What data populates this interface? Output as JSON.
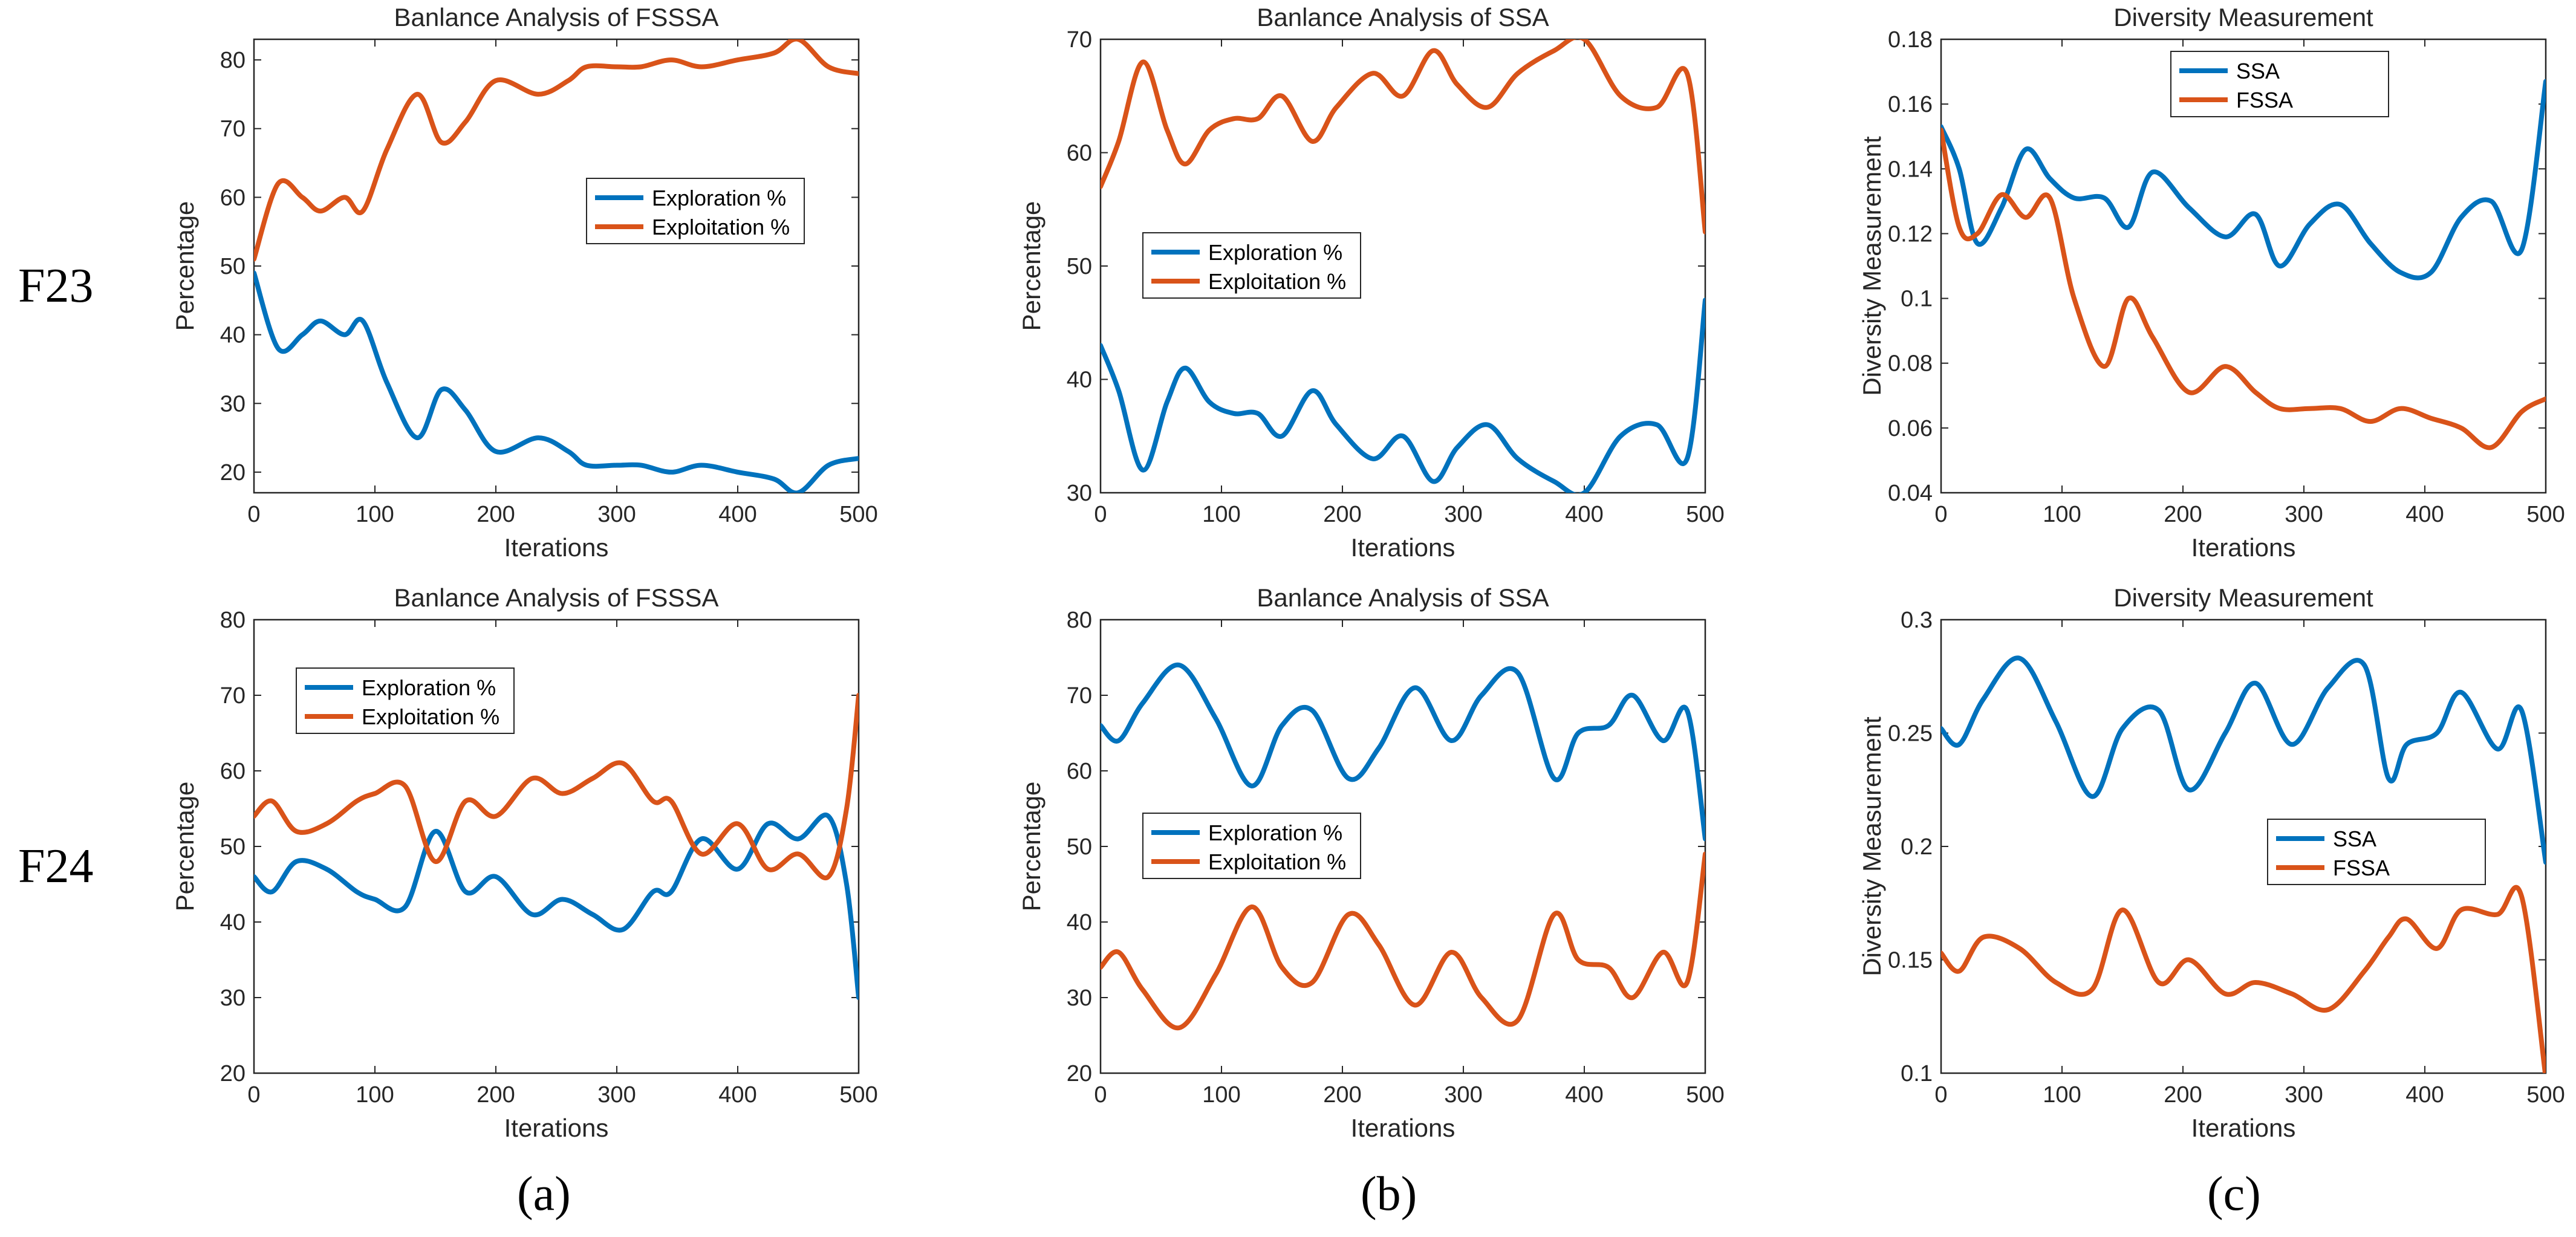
{
  "figure": {
    "row_labels": [
      "F23",
      "F24"
    ],
    "panel_labels": [
      "(a)",
      "(b)",
      "(c)"
    ]
  },
  "colors": {
    "blue": "#0072BD",
    "orange": "#D95319"
  },
  "chart_data": [
    {
      "type": "line",
      "title": "Banlance Analysis of FSSSA",
      "xlabel": "Iterations",
      "ylabel": "Percentage",
      "xlim": [
        0,
        500
      ],
      "ylim": [
        17,
        83
      ],
      "xticks": [
        0,
        100,
        200,
        300,
        400,
        500
      ],
      "yticks": [
        20,
        30,
        40,
        50,
        60,
        70,
        80
      ],
      "legend_position": "center-right",
      "grid": false,
      "x": [
        0,
        20,
        40,
        55,
        75,
        90,
        110,
        135,
        155,
        175,
        200,
        235,
        260,
        275,
        300,
        320,
        345,
        370,
        400,
        430,
        450,
        475,
        500
      ],
      "series": [
        {
          "name": "Exploration %",
          "color": "#0072BD",
          "values": [
            49,
            38,
            40,
            42,
            40,
            42,
            33,
            25,
            32,
            29,
            23,
            25,
            23,
            21,
            21,
            21,
            20,
            21,
            20,
            19,
            17,
            21,
            22
          ]
        },
        {
          "name": "Exploitation %",
          "color": "#D95319",
          "values": [
            51,
            62,
            60,
            58,
            60,
            58,
            67,
            75,
            68,
            71,
            77,
            75,
            77,
            79,
            79,
            79,
            80,
            79,
            80,
            81,
            83,
            79,
            78
          ]
        }
      ]
    },
    {
      "type": "line",
      "title": "Banlance Analysis of SSA",
      "xlabel": "Iterations",
      "ylabel": "Percentage",
      "xlim": [
        0,
        500
      ],
      "ylim": [
        30,
        70
      ],
      "xticks": [
        0,
        100,
        200,
        300,
        400,
        500
      ],
      "yticks": [
        30,
        40,
        50,
        60,
        70
      ],
      "legend_position": "center-left",
      "grid": false,
      "x": [
        0,
        15,
        35,
        55,
        70,
        90,
        110,
        130,
        150,
        175,
        195,
        225,
        250,
        275,
        295,
        320,
        345,
        375,
        400,
        430,
        460,
        485,
        500
      ],
      "series": [
        {
          "name": "Exploration %",
          "color": "#0072BD",
          "values": [
            43,
            39,
            32,
            38,
            41,
            38,
            37,
            37,
            35,
            39,
            36,
            33,
            35,
            31,
            34,
            36,
            33,
            31,
            30,
            35,
            36,
            33,
            47
          ]
        },
        {
          "name": "Exploitation %",
          "color": "#D95319",
          "values": [
            57,
            61,
            68,
            62,
            59,
            62,
            63,
            63,
            65,
            61,
            64,
            67,
            65,
            69,
            66,
            64,
            67,
            69,
            70,
            65,
            64,
            67,
            53
          ]
        }
      ]
    },
    {
      "type": "line",
      "title": "Diversity Measurement",
      "xlabel": "Iterations",
      "ylabel": "Diversity Measurement",
      "xlim": [
        0,
        500
      ],
      "ylim": [
        0.04,
        0.18
      ],
      "xticks": [
        0,
        100,
        200,
        300,
        400,
        500
      ],
      "yticks": [
        0.04,
        0.06,
        0.08,
        0.1,
        0.12,
        0.14,
        0.16,
        0.18
      ],
      "legend_position": "top-center",
      "grid": false,
      "x": [
        0,
        15,
        30,
        50,
        70,
        90,
        110,
        135,
        155,
        175,
        205,
        235,
        260,
        280,
        305,
        330,
        355,
        380,
        405,
        430,
        455,
        480,
        500
      ],
      "series": [
        {
          "name": "SSA",
          "color": "#0072BD",
          "values": [
            0.153,
            0.14,
            0.117,
            0.128,
            0.146,
            0.137,
            0.131,
            0.131,
            0.122,
            0.139,
            0.128,
            0.119,
            0.126,
            0.11,
            0.123,
            0.129,
            0.117,
            0.108,
            0.108,
            0.125,
            0.13,
            0.115,
            0.167
          ]
        },
        {
          "name": "FSSA",
          "color": "#D95319",
          "values": [
            0.152,
            0.122,
            0.12,
            0.132,
            0.125,
            0.131,
            0.1,
            0.079,
            0.1,
            0.088,
            0.071,
            0.079,
            0.071,
            0.066,
            0.066,
            0.066,
            0.062,
            0.066,
            0.063,
            0.06,
            0.054,
            0.065,
            0.069
          ]
        }
      ]
    },
    {
      "type": "line",
      "title": "Banlance Analysis of FSSSA",
      "xlabel": "Iterations",
      "ylabel": "Percentage",
      "xlim": [
        0,
        500
      ],
      "ylim": [
        20,
        80
      ],
      "xticks": [
        0,
        100,
        200,
        300,
        400,
        500
      ],
      "yticks": [
        20,
        30,
        40,
        50,
        60,
        70,
        80
      ],
      "legend_position": "top-left",
      "grid": false,
      "x": [
        0,
        15,
        35,
        60,
        85,
        100,
        125,
        150,
        175,
        200,
        230,
        255,
        280,
        305,
        330,
        345,
        370,
        400,
        425,
        450,
        475,
        490,
        500
      ],
      "series": [
        {
          "name": "Exploration %",
          "color": "#0072BD",
          "values": [
            46,
            44,
            48,
            47,
            44,
            43,
            42,
            52,
            44,
            46,
            41,
            43,
            41,
            39,
            44,
            44,
            51,
            47,
            53,
            51,
            54,
            45,
            30
          ]
        },
        {
          "name": "Exploitation %",
          "color": "#D95319",
          "values": [
            54,
            56,
            52,
            53,
            56,
            57,
            58,
            48,
            56,
            54,
            59,
            57,
            59,
            61,
            56,
            56,
            49,
            53,
            47,
            49,
            46,
            55,
            70
          ]
        }
      ]
    },
    {
      "type": "line",
      "title": "Banlance Analysis of SSA",
      "xlabel": "Iterations",
      "ylabel": "Percentage",
      "xlim": [
        0,
        500
      ],
      "ylim": [
        20,
        80
      ],
      "xticks": [
        0,
        100,
        200,
        300,
        400,
        500
      ],
      "yticks": [
        20,
        30,
        40,
        50,
        60,
        70,
        80
      ],
      "legend_position": "center-left",
      "grid": false,
      "x": [
        0,
        15,
        35,
        65,
        95,
        125,
        150,
        175,
        205,
        230,
        260,
        290,
        315,
        345,
        375,
        395,
        420,
        440,
        465,
        485,
        500
      ],
      "series": [
        {
          "name": "Exploration %",
          "color": "#0072BD",
          "values": [
            66,
            64,
            69,
            74,
            67,
            58,
            66,
            68,
            59,
            63,
            71,
            64,
            70,
            73,
            59,
            65,
            66,
            70,
            64,
            68,
            51
          ]
        },
        {
          "name": "Exploitation %",
          "color": "#D95319",
          "values": [
            34,
            36,
            31,
            26,
            33,
            42,
            34,
            32,
            41,
            37,
            29,
            36,
            30,
            27,
            41,
            35,
            34,
            30,
            36,
            32,
            49
          ]
        }
      ]
    },
    {
      "type": "line",
      "title": "Diversity Measurement",
      "xlabel": "Iterations",
      "ylabel": "Diversity Measurement",
      "xlim": [
        0,
        500
      ],
      "ylim": [
        0.1,
        0.3
      ],
      "xticks": [
        0,
        100,
        200,
        300,
        400,
        500
      ],
      "yticks": [
        0.1,
        0.15,
        0.2,
        0.25,
        0.3
      ],
      "legend_position": "lower-right",
      "grid": false,
      "x": [
        0,
        15,
        35,
        65,
        95,
        125,
        150,
        180,
        205,
        235,
        260,
        290,
        320,
        350,
        370,
        385,
        410,
        430,
        460,
        480,
        500
      ],
      "series": [
        {
          "name": "SSA",
          "color": "#0072BD",
          "values": [
            0.252,
            0.245,
            0.265,
            0.283,
            0.255,
            0.222,
            0.252,
            0.26,
            0.225,
            0.25,
            0.272,
            0.245,
            0.27,
            0.28,
            0.23,
            0.245,
            0.25,
            0.268,
            0.243,
            0.26,
            0.193
          ]
        },
        {
          "name": "FSSA",
          "color": "#D95319",
          "values": [
            0.153,
            0.145,
            0.16,
            0.155,
            0.14,
            0.137,
            0.172,
            0.14,
            0.15,
            0.135,
            0.14,
            0.135,
            0.128,
            0.145,
            0.16,
            0.168,
            0.155,
            0.172,
            0.17,
            0.178,
            0.098
          ]
        }
      ]
    }
  ]
}
